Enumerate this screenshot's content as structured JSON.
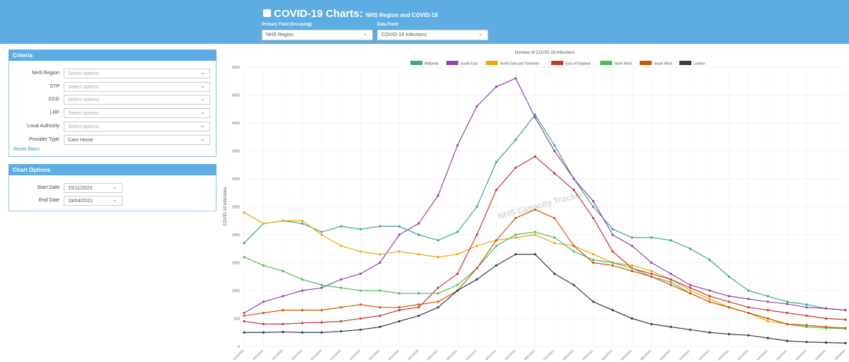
{
  "header": {
    "title": "COVID-19 Charts:",
    "subtitle": "NHS Region and COVID-19",
    "fields": [
      {
        "label": "Primary Field (Grouping)",
        "value": "NHS Region"
      },
      {
        "label": "Data Point",
        "value": "COVID-19 Infections"
      }
    ]
  },
  "criteria": {
    "title": "Criteria",
    "fields": [
      {
        "label": "NHS Region",
        "value": "Select options"
      },
      {
        "label": "STP",
        "value": "Select options"
      },
      {
        "label": "CCG",
        "value": "Select options"
      },
      {
        "label": "LRF",
        "value": "Select options"
      },
      {
        "label": "Local Authority",
        "value": "Select options"
      },
      {
        "label": "Provider Type",
        "value": "Care Home"
      }
    ],
    "reset": "Reset filters"
  },
  "chart_options": {
    "title": "Chart Options",
    "fields": [
      {
        "label": "Start Date",
        "value": "15/11/2020"
      },
      {
        "label": "End Date",
        "value": "19/04/2021"
      }
    ]
  },
  "chart_data": {
    "type": "line",
    "title": "Number of COVID-19 Infections",
    "y_label": "COVID-19 Infections",
    "annotation": "NHS Capacity Tracker",
    "categories": [
      "15/11/2020",
      "20/11/2020",
      "25/11/2020",
      "30/11/2020",
      "05/12/2020",
      "10/12/2020",
      "15/12/2020",
      "20/12/2020",
      "25/12/2020",
      "30/12/2020",
      "04/01/2021",
      "09/01/2021",
      "14/01/2021",
      "19/01/2021",
      "24/01/2021",
      "29/01/2021",
      "03/02/2021",
      "08/02/2021",
      "13/02/2021",
      "18/02/2021",
      "23/02/2021",
      "28/02/2021",
      "05/03/2021",
      "10/03/2021",
      "15/03/2021",
      "20/03/2021",
      "25/03/2021",
      "30/03/2021",
      "04/04/2021",
      "09/04/2021",
      "14/04/2021",
      "19/04/2021"
    ],
    "ylim": [
      0,
      5000
    ],
    "yticks": [
      0,
      500,
      1000,
      1500,
      2000,
      2500,
      3000,
      3500,
      4000,
      4500,
      5000
    ],
    "grid": true,
    "series": [
      {
        "name": "Midlands",
        "color": "#3aa58a",
        "values": [
          1850,
          2200,
          2250,
          2200,
          2050,
          2150,
          2100,
          2150,
          2150,
          2000,
          1900,
          2050,
          2500,
          3300,
          3700,
          4150,
          3600,
          3000,
          2500,
          2100,
          1950,
          1950,
          1900,
          1750,
          1550,
          1250,
          1000,
          900,
          800,
          750,
          680,
          650
        ]
      },
      {
        "name": "South East",
        "color": "#8e44ad",
        "values": [
          600,
          800,
          900,
          1000,
          1050,
          1200,
          1300,
          1500,
          2000,
          2200,
          2700,
          3600,
          4300,
          4650,
          4800,
          4100,
          3500,
          3000,
          2600,
          2000,
          1800,
          1500,
          1300,
          1100,
          1000,
          900,
          850,
          800,
          760,
          700,
          680,
          650
        ]
      },
      {
        "name": "North East and Yorkshire",
        "color": "#f0a30a",
        "values": [
          2400,
          2200,
          2250,
          2250,
          2000,
          1800,
          1700,
          1650,
          1700,
          1650,
          1600,
          1650,
          1800,
          1900,
          1950,
          2000,
          1850,
          1800,
          1650,
          1500,
          1450,
          1350,
          1200,
          1000,
          850,
          700,
          600,
          450,
          400,
          350,
          330,
          320
        ]
      },
      {
        "name": "East of England",
        "color": "#c0392b",
        "values": [
          450,
          400,
          400,
          420,
          430,
          450,
          500,
          550,
          650,
          700,
          1050,
          1300,
          2000,
          2800,
          3200,
          3400,
          3100,
          2800,
          2300,
          1700,
          1400,
          1300,
          1200,
          1050,
          900,
          800,
          700,
          650,
          600,
          550,
          500,
          480
        ]
      },
      {
        "name": "North West",
        "color": "#4cbb5a",
        "values": [
          1600,
          1450,
          1350,
          1200,
          1100,
          1050,
          1000,
          1000,
          950,
          950,
          950,
          1100,
          1400,
          1800,
          2000,
          2050,
          1950,
          1700,
          1550,
          1500,
          1400,
          1250,
          1150,
          950,
          800,
          700,
          600,
          500,
          400,
          350,
          330,
          320
        ]
      },
      {
        "name": "South West",
        "color": "#d35400",
        "values": [
          550,
          600,
          650,
          650,
          650,
          700,
          750,
          700,
          700,
          750,
          800,
          1000,
          1400,
          1900,
          2300,
          2450,
          2300,
          1800,
          1500,
          1450,
          1350,
          1250,
          1100,
          950,
          800,
          700,
          600,
          500,
          400,
          380,
          350,
          330
        ]
      },
      {
        "name": "London",
        "color": "#2c3e50",
        "values": [
          250,
          250,
          260,
          250,
          250,
          270,
          300,
          350,
          450,
          550,
          700,
          1000,
          1200,
          1450,
          1650,
          1650,
          1300,
          1100,
          800,
          650,
          500,
          400,
          350,
          300,
          250,
          220,
          200,
          150,
          100,
          80,
          70,
          60
        ]
      }
    ]
  }
}
